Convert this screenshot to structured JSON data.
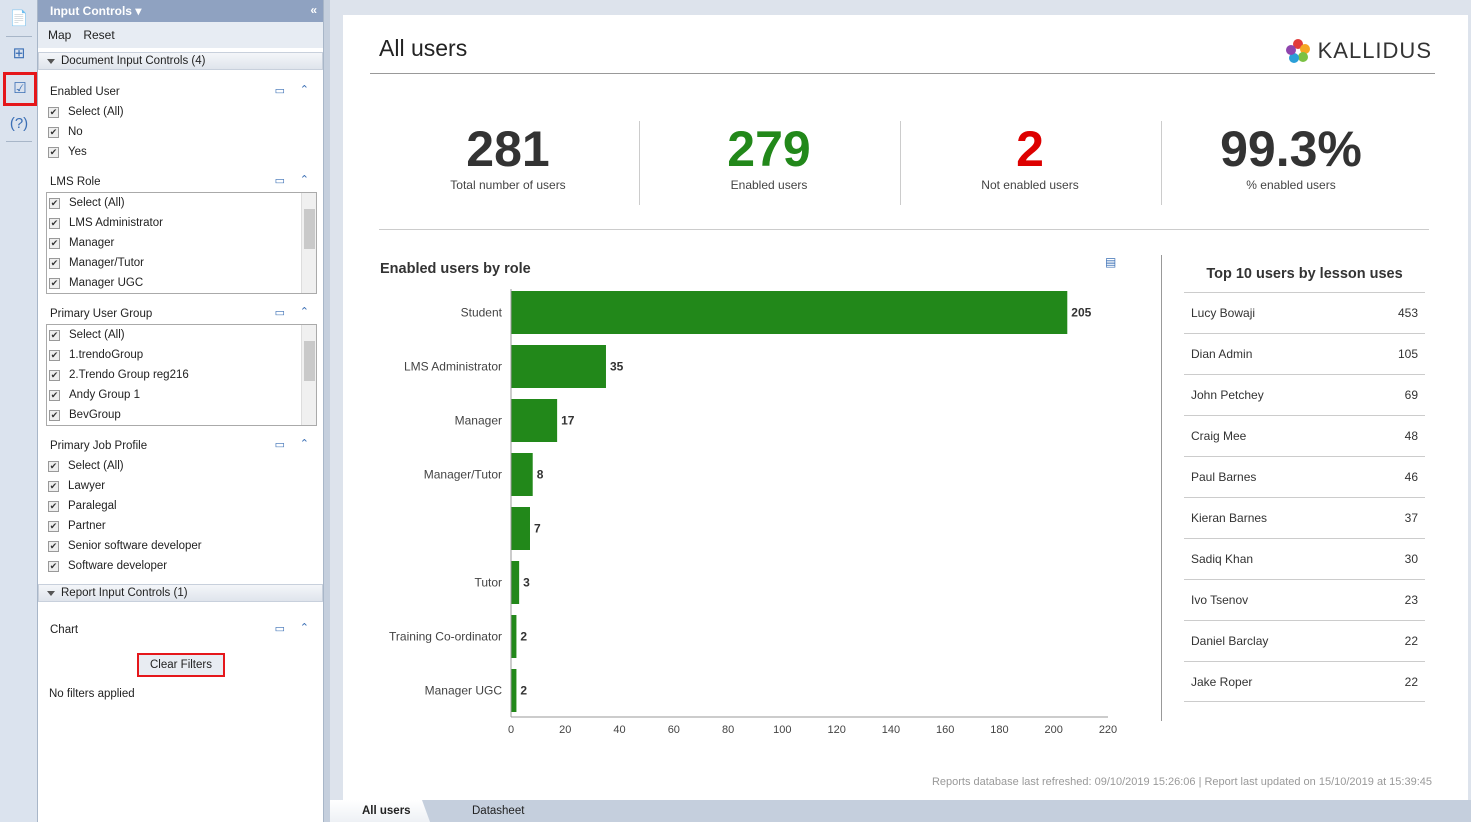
{
  "panel": {
    "title": "Input Controls",
    "menu": [
      "Map",
      "Reset"
    ],
    "doc_section": "Document Input Controls (4)",
    "report_section": "Report Input Controls (1)",
    "groups": [
      {
        "label": "Enabled User",
        "items": [
          "Select (All)",
          "No",
          "Yes"
        ],
        "list": false
      },
      {
        "label": "LMS Role",
        "items": [
          "Select (All)",
          "LMS Administrator",
          "Manager",
          "Manager/Tutor",
          "Manager UGC"
        ],
        "list": true
      },
      {
        "label": "Primary User Group",
        "items": [
          "Select (All)",
          "1.trendoGroup",
          "2.Trendo Group reg216",
          "Andy Group 1",
          "BevGroup"
        ],
        "list": true
      },
      {
        "label": "Primary Job Profile",
        "items": [
          "Select (All)",
          "Lawyer",
          "Paralegal",
          "Partner",
          "Senior software developer",
          "Software developer"
        ],
        "list": false
      }
    ],
    "chart_label": "Chart",
    "clear_filters": "Clear Filters",
    "no_filters": "No filters applied"
  },
  "report": {
    "title": "All users",
    "brand": "KALLIDUS",
    "kpis": [
      {
        "value": "281",
        "label": "Total number of users",
        "color": "#333333"
      },
      {
        "value": "279",
        "label": "Enabled users",
        "color": "#22881a"
      },
      {
        "value": "2",
        "label": "Not enabled users",
        "color": "#dd0000"
      },
      {
        "value": "99.3%",
        "label": "% enabled users",
        "color": "#333333"
      }
    ],
    "top_title": "Top 10 users by lesson uses",
    "top_users": [
      [
        "Lucy Bowaji",
        "453"
      ],
      [
        "Dian Admin",
        "105"
      ],
      [
        "John Petchey",
        "69"
      ],
      [
        "Craig Mee",
        "48"
      ],
      [
        "Paul Barnes",
        "46"
      ],
      [
        "Kieran Barnes",
        "37"
      ],
      [
        "Sadiq Khan",
        "30"
      ],
      [
        "Ivo Tsenov",
        "23"
      ],
      [
        "Daniel Barclay",
        "22"
      ],
      [
        "Jake Roper",
        "22"
      ]
    ],
    "footer": "Reports database last refreshed: 09/10/2019 15:26:06 | Report last updated on 15/10/2019 at 15:39:45"
  },
  "chart_data": {
    "type": "bar",
    "orientation": "horizontal",
    "title": "Enabled users by role",
    "categories": [
      "Student",
      "LMS Administrator",
      "Manager",
      "Manager/Tutor",
      "",
      "Tutor",
      "Training Co-ordinator",
      "Manager UGC"
    ],
    "values": [
      205,
      35,
      17,
      8,
      7,
      3,
      2,
      2
    ],
    "xlim": [
      0,
      220
    ],
    "xticks": [
      0,
      20,
      40,
      60,
      80,
      100,
      120,
      140,
      160,
      180,
      200,
      220
    ],
    "color": "#22881a"
  },
  "tabs": [
    "All users",
    "Datasheet"
  ]
}
